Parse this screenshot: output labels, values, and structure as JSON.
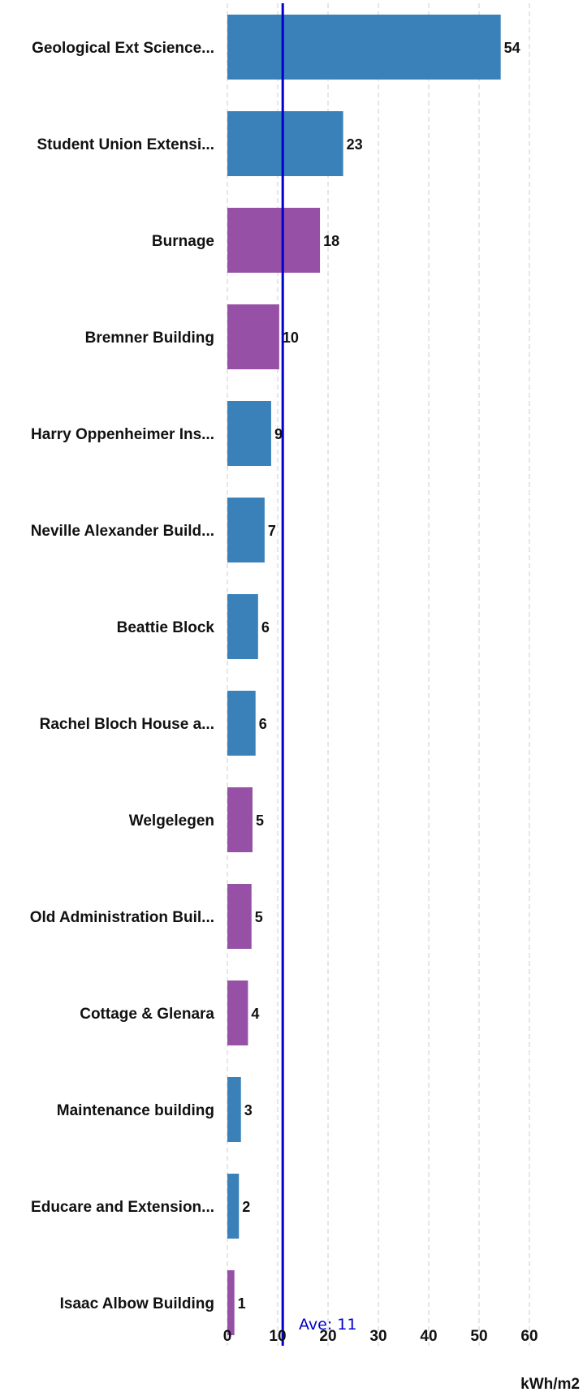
{
  "chart_data": {
    "type": "bar",
    "orientation": "horizontal",
    "categories": [
      "Geological Ext Science...",
      "Student Union Extensi...",
      "Burnage",
      "Bremner Building",
      "Harry Oppenheimer Ins...",
      "Neville Alexander Build...",
      "Beattie Block",
      "Rachel Bloch House a...",
      "Welgelegen",
      "Old Administration Buil...",
      "Cottage & Glenara",
      "Maintenance building",
      "Educare and Extension...",
      "Isaac Albow Building"
    ],
    "values": [
      54.3,
      23.0,
      18.4,
      10.3,
      8.7,
      7.4,
      6.1,
      5.6,
      5.0,
      4.8,
      4.1,
      2.7,
      2.3,
      1.4
    ],
    "value_labels": [
      "54",
      "23",
      "18",
      "10",
      "9",
      "7",
      "6",
      "6",
      "5",
      "5",
      "4",
      "3",
      "2",
      "1"
    ],
    "bar_groups": [
      "blue",
      "blue",
      "purple",
      "purple",
      "blue",
      "blue",
      "blue",
      "blue",
      "purple",
      "purple",
      "purple",
      "blue",
      "blue",
      "purple"
    ],
    "colors": {
      "blue": "#3a80b9",
      "purple": "#9651a6",
      "average_line": "#0000cc"
    },
    "average": {
      "value": 11,
      "label": "Ave: 11"
    },
    "xlabel": "kWh/m2",
    "ylabel": "",
    "xlim": [
      0,
      64
    ],
    "xticks": [
      0,
      10,
      20,
      30,
      40,
      50,
      60
    ],
    "xtick_labels": [
      "0",
      "10",
      "20",
      "30",
      "40",
      "50",
      "60"
    ],
    "grid": true
  }
}
